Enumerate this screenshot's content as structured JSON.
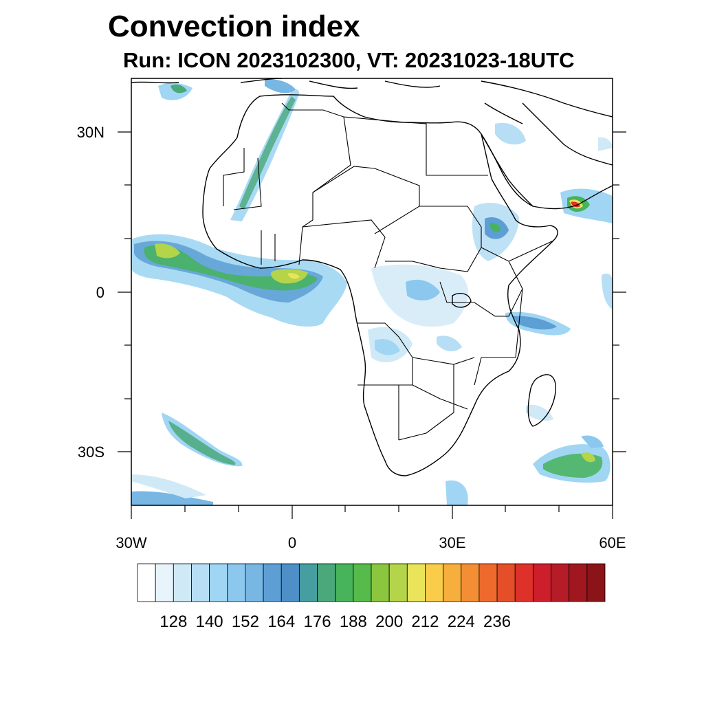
{
  "title": "Convection index",
  "subtitle": "Run: ICON 2023102300,  VT: 20231023-18UTC",
  "map": {
    "lon_range": [
      -30,
      60
    ],
    "lat_range": [
      -40,
      40
    ],
    "lon_ticks": [
      {
        "value": -30,
        "label": "30W"
      },
      {
        "value": 0,
        "label": "0"
      },
      {
        "value": 30,
        "label": "30E"
      },
      {
        "value": 60,
        "label": "60E"
      }
    ],
    "lat_ticks": [
      {
        "value": 30,
        "label": "30N"
      },
      {
        "value": 0,
        "label": "0"
      },
      {
        "value": -30,
        "label": "30S"
      }
    ]
  },
  "colorbar": {
    "colors": [
      "#ffffff",
      "#e8f4fb",
      "#cfe9f7",
      "#b7def4",
      "#a0d6f3",
      "#8cc8ee",
      "#78b6e3",
      "#5d9fd4",
      "#4d8fc6",
      "#479ea0",
      "#4aa87a",
      "#47b35a",
      "#56bb4a",
      "#8cc63f",
      "#b4d44a",
      "#e9e45a",
      "#f9cd4a",
      "#f6ae3d",
      "#f48e34",
      "#ee6a2c",
      "#e44e28",
      "#dd3129",
      "#cc1f2b",
      "#b61b28",
      "#a0171f",
      "#8a1418"
    ],
    "labels": [
      "128",
      "140",
      "152",
      "164",
      "176",
      "188",
      "200",
      "212",
      "224",
      "236"
    ]
  }
}
